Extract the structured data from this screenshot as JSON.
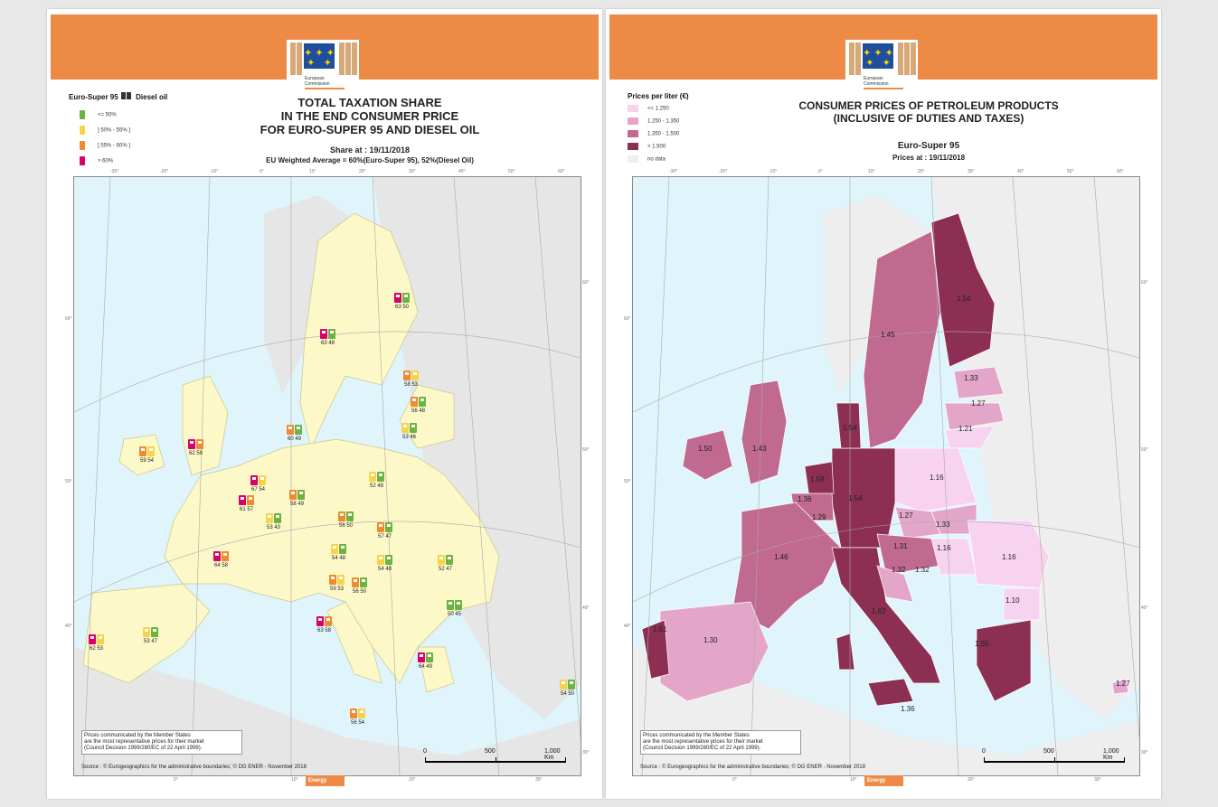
{
  "colors": {
    "banner": "#ec8a46",
    "sea": "#dff5fb",
    "land_nondata": "#e6e6e6",
    "eu_land_left": "#fdf8c8",
    "le50": "#6cb33f",
    "b50_55": "#f5d44a",
    "b55_60": "#f08a2e",
    "gt60": "#d8006b",
    "p_le125": "#f7d3f0",
    "p_125_135": "#e3a6c9",
    "p_135_150": "#c06a8f",
    "p_gt150": "#8c2f52",
    "nodata": "#eeeeee"
  },
  "logo": {
    "line1": "European",
    "line2": "Commission"
  },
  "left": {
    "title_lines": [
      "TOTAL TAXATION SHARE",
      "IN THE END CONSUMER PRICE",
      "FOR EURO-SUPER 95 AND DIESEL OIL"
    ],
    "share_at": "Share at : 19/11/2018",
    "eu_avg": "EU Weighted Average = 60%(Euro-Super 95), 52%(Diesel Oil)",
    "legend_title_a": "Euro-Super 95",
    "legend_title_b": "Diesel oil",
    "legend": [
      {
        "label": "<= 50%",
        "color": "#6cb33f"
      },
      {
        "label": "] 50% - 55% ]",
        "color": "#f5d44a"
      },
      {
        "label": "] 55% - 60% ]",
        "color": "#f08a2e"
      },
      {
        "label": "> 60%",
        "color": "#d8006b"
      }
    ],
    "countries": [
      {
        "v": "63 50",
        "c1": "#d8006b",
        "c2": "#6cb33f"
      },
      {
        "v": "63 48",
        "c1": "#d8006b",
        "c2": "#6cb33f"
      },
      {
        "v": "58 53",
        "c1": "#f08a2e",
        "c2": "#f5d44a"
      },
      {
        "v": "56 48",
        "c1": "#f08a2e",
        "c2": "#6cb33f"
      },
      {
        "v": "53 46",
        "c1": "#f5d44a",
        "c2": "#6cb33f"
      },
      {
        "v": "60 49",
        "c1": "#f08a2e",
        "c2": "#6cb33f"
      },
      {
        "v": "62 59",
        "c1": "#d8006b",
        "c2": "#f08a2e"
      },
      {
        "v": "59 54",
        "c1": "#f08a2e",
        "c2": "#f5d44a"
      },
      {
        "v": "67 54",
        "c1": "#d8006b",
        "c2": "#f5d44a"
      },
      {
        "v": "52 48",
        "c1": "#f5d44a",
        "c2": "#6cb33f"
      },
      {
        "v": "61 57",
        "c1": "#d8006b",
        "c2": "#f08a2e"
      },
      {
        "v": "58 49",
        "c1": "#f08a2e",
        "c2": "#6cb33f"
      },
      {
        "v": "53 43",
        "c1": "#f5d44a",
        "c2": "#6cb33f"
      },
      {
        "v": "56 50",
        "c1": "#f08a2e",
        "c2": "#6cb33f"
      },
      {
        "v": "57 47",
        "c1": "#f08a2e",
        "c2": "#6cb33f"
      },
      {
        "v": "64 58",
        "c1": "#d8006b",
        "c2": "#f08a2e"
      },
      {
        "v": "54 48",
        "c1": "#f5d44a",
        "c2": "#6cb33f"
      },
      {
        "v": "54 48",
        "c1": "#f5d44a",
        "c2": "#6cb33f"
      },
      {
        "v": "52 47",
        "c1": "#f5d44a",
        "c2": "#6cb33f"
      },
      {
        "v": "59 53",
        "c1": "#f08a2e",
        "c2": "#f5d44a"
      },
      {
        "v": "56 50",
        "c1": "#f08a2e",
        "c2": "#6cb33f"
      },
      {
        "v": "50 45",
        "c1": "#6cb33f",
        "c2": "#6cb33f"
      },
      {
        "v": "63 58",
        "c1": "#d8006b",
        "c2": "#f08a2e"
      },
      {
        "v": "53 47",
        "c1": "#f5d44a",
        "c2": "#6cb33f"
      },
      {
        "v": "62 53",
        "c1": "#d8006b",
        "c2": "#f5d44a"
      },
      {
        "v": "64 49",
        "c1": "#d8006b",
        "c2": "#6cb33f"
      },
      {
        "v": "54 50",
        "c1": "#f5d44a",
        "c2": "#6cb33f"
      },
      {
        "v": "56 54",
        "c1": "#f08a2e",
        "c2": "#f5d44a"
      }
    ]
  },
  "right": {
    "title_lines": [
      "CONSUMER PRICES OF PETROLEUM PRODUCTS",
      "(INCLUSIVE OF DUTIES AND TAXES)"
    ],
    "product": "Euro-Super 95",
    "prices_at": "Prices at : 19/11/2018",
    "legend_title": "Prices per liter (€)",
    "legend": [
      {
        "label": "<= 1.250",
        "color": "#f7d3f0"
      },
      {
        "label": "1.250 - 1.350",
        "color": "#e3a6c9"
      },
      {
        "label": "1.350 - 1.500",
        "color": "#c06a8f"
      },
      {
        "label": "> 1.500",
        "color": "#8c2f52"
      },
      {
        "label": "no data",
        "color": "#eeeeee"
      }
    ],
    "prices": [
      "1.54",
      "1.45",
      "1.33",
      "1.27",
      "1.21",
      "1.54",
      "1.50",
      "1.43",
      "1.16",
      "1.58",
      "1.36",
      "1.54",
      "1.29",
      "1.27",
      "1.33",
      "1.46",
      "1.31",
      "1.16",
      "1.16",
      "1.32",
      "1.32",
      "1.10",
      "1.51",
      "1.30",
      "1.62",
      "1.55",
      "1.27",
      "1.36"
    ]
  },
  "note": {
    "l1": "Prices communicated by the Member States",
    "l2": "are the most representative prices for their market",
    "l3": "(Council Decision 1999/280/EC of 22 April 1999)."
  },
  "source": "Source : © Eurogeographics for the administrative boundaries;   © DG ENER - November 2018",
  "scale": {
    "a": "0",
    "b": "500",
    "c": "1,000 Km"
  },
  "energy": "Energy",
  "grads_top": [
    "-30°",
    "-20°",
    "-10°",
    "0°",
    "10°",
    "20°",
    "30°",
    "40°",
    "50°",
    "60°"
  ],
  "grads_bottom": [
    "0°",
    "10°",
    "20°",
    "30°"
  ],
  "grads_left": [
    "60°",
    "50°",
    "40°"
  ],
  "grads_right": [
    "60°",
    "50°",
    "40°",
    "30°"
  ]
}
